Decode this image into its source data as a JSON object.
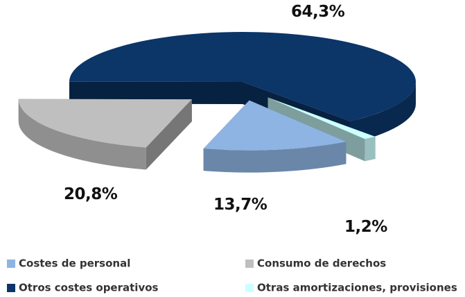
{
  "chart_data": {
    "type": "pie",
    "categories": [
      "Costes de personal",
      "Consumo de derechos",
      "Otros costes operativos",
      "Otras amortizaciones, provisiones"
    ],
    "values": [
      13.7,
      20.8,
      64.3,
      1.2
    ],
    "value_labels": [
      "13,7%",
      "20,8%",
      "64,3%",
      "1,2%"
    ],
    "colors": [
      "#8db4e2",
      "#bfbfbf",
      "#0c3568",
      "#ccffff"
    ],
    "legend": "bottom"
  }
}
